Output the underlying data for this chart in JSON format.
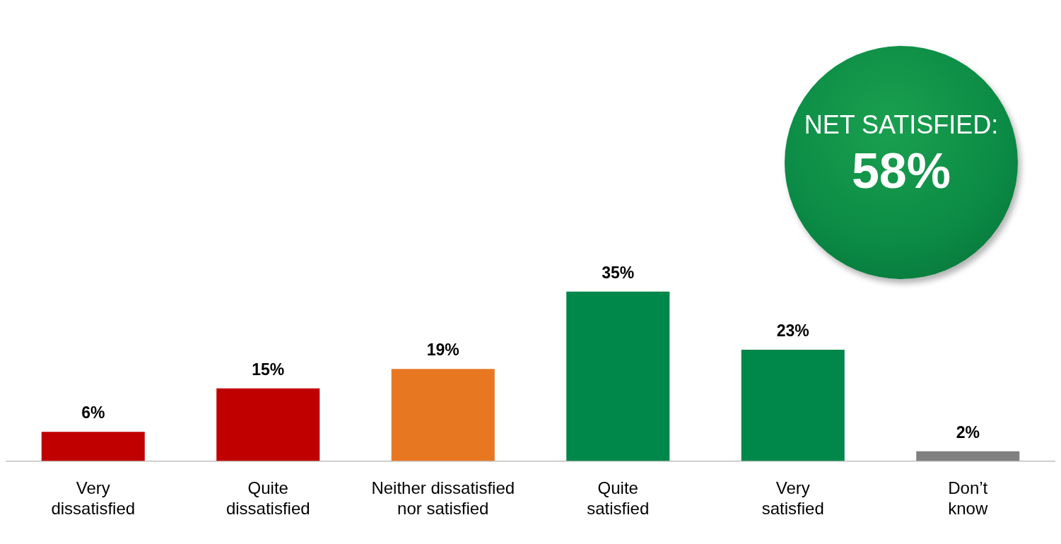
{
  "chart_data": {
    "type": "bar",
    "categories": [
      "Very dissatisfied",
      "Quite dissatisfied",
      "Neither dissatisfied nor satisfied",
      "Quite satisfied",
      "Very satisfied",
      "Don’t know"
    ],
    "values": [
      6,
      15,
      19,
      35,
      23,
      2
    ],
    "value_labels": [
      "6%",
      "15%",
      "19%",
      "35%",
      "23%",
      "2%"
    ],
    "colors": [
      "#c00000",
      "#c00000",
      "#e87722",
      "#00874a",
      "#00874a",
      "#808080"
    ],
    "grid": false,
    "legend": false,
    "annotations": [
      "NET SATISFIED:",
      "58%"
    ]
  }
}
